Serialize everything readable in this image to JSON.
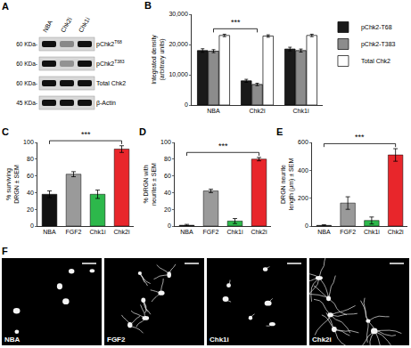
{
  "blot": {
    "title": "A",
    "lanes": [
      "NBA",
      "Chk2i",
      "Chk1i"
    ],
    "rows": [
      {
        "mw": "60 KDa-",
        "label": "pChk2",
        "sup": "T68",
        "intensity": [
          1,
          0.4,
          1
        ]
      },
      {
        "mw": "60 KDa-",
        "label": "pChk2",
        "sup": "T383",
        "intensity": [
          1,
          0.35,
          1
        ]
      },
      {
        "mw": "60 KDa-",
        "label": "Total Chk2",
        "intensity": [
          1,
          1,
          1
        ]
      },
      {
        "mw": "45 KDa-",
        "label": "β-Actin",
        "intensity": [
          1,
          1,
          1
        ]
      }
    ]
  },
  "chart_data": [
    {
      "title": "B",
      "type": "bar",
      "categories": [
        "NBA",
        "Chk2i",
        "Chk1i"
      ],
      "series": [
        {
          "name": "pChk2-T68",
          "color": "#1a1a1a",
          "values": [
            18000,
            8000,
            18500
          ],
          "errors": [
            600,
            500,
            600
          ]
        },
        {
          "name": "pChk2-T383",
          "color": "#8c8c8c",
          "values": [
            17800,
            6800,
            18000
          ],
          "errors": [
            500,
            400,
            500
          ]
        },
        {
          "name": "Total Chk2",
          "color": "#ffffff",
          "values": [
            23000,
            22800,
            23000
          ],
          "errors": [
            400,
            400,
            400
          ]
        }
      ],
      "ylabel": "Integrated density\n(arbitrary units)",
      "ylim": [
        0,
        30000
      ],
      "yticks": [
        0,
        {
          "value": 10000,
          "label": "10,000"
        },
        {
          "value": 20000,
          "label": "20,000"
        },
        {
          "value": 30000,
          "label": "30,000"
        }
      ],
      "legend": "upper right",
      "annotations": [
        {
          "text": "***",
          "from": "NBA",
          "to": "Chk2i"
        }
      ]
    },
    {
      "title": "C",
      "type": "bar",
      "categories": [
        "NBA",
        "FGF2",
        "Chk1i",
        "Chk2i"
      ],
      "values": [
        38,
        62,
        38,
        92
      ],
      "errors": [
        4,
        3,
        5,
        4
      ],
      "colors": [
        "#111111",
        "#9a9a9a",
        "#2db84b",
        "#e8262b"
      ],
      "ylabel": "% surviving\nDRGN ± SEM",
      "ylim": [
        0,
        100
      ],
      "yticks": [
        0,
        20,
        40,
        60,
        80,
        100
      ],
      "annotations": [
        {
          "text": "***",
          "from": "NBA",
          "to": "Chk2i"
        }
      ]
    },
    {
      "title": "D",
      "type": "bar",
      "categories": [
        "NBA",
        "FGF2",
        "Chk1i",
        "Chk2i"
      ],
      "values": [
        1,
        42,
        6,
        80
      ],
      "errors": [
        1,
        2,
        3,
        2
      ],
      "colors": [
        "#111111",
        "#9a9a9a",
        "#2db84b",
        "#e8262b"
      ],
      "ylabel": "% DRGN with\nneurites ± SEM",
      "ylim": [
        0,
        100
      ],
      "yticks": [
        0,
        20,
        40,
        60,
        80,
        100
      ],
      "annotations": [
        {
          "text": "***",
          "from": "NBA",
          "to": "Chk2i"
        }
      ]
    },
    {
      "title": "E",
      "type": "bar",
      "categories": [
        "NBA",
        "FGF2",
        "Chk1i",
        "Chk2i"
      ],
      "values": [
        5,
        165,
        40,
        510
      ],
      "errors": [
        5,
        45,
        25,
        45
      ],
      "colors": [
        "#111111",
        "#9a9a9a",
        "#2db84b",
        "#e8262b"
      ],
      "ylabel": "DRGN neurite\nlength (μm) ± SEM",
      "ylim": [
        0,
        600
      ],
      "yticks": [
        0,
        200,
        400,
        600
      ],
      "annotations": [
        {
          "text": "***",
          "from": "NBA",
          "to": "Chk2i"
        }
      ]
    }
  ],
  "micrographs": {
    "title": "F",
    "panels": [
      "NBA",
      "FGF2",
      "Chk1i",
      "Chk2i"
    ]
  }
}
